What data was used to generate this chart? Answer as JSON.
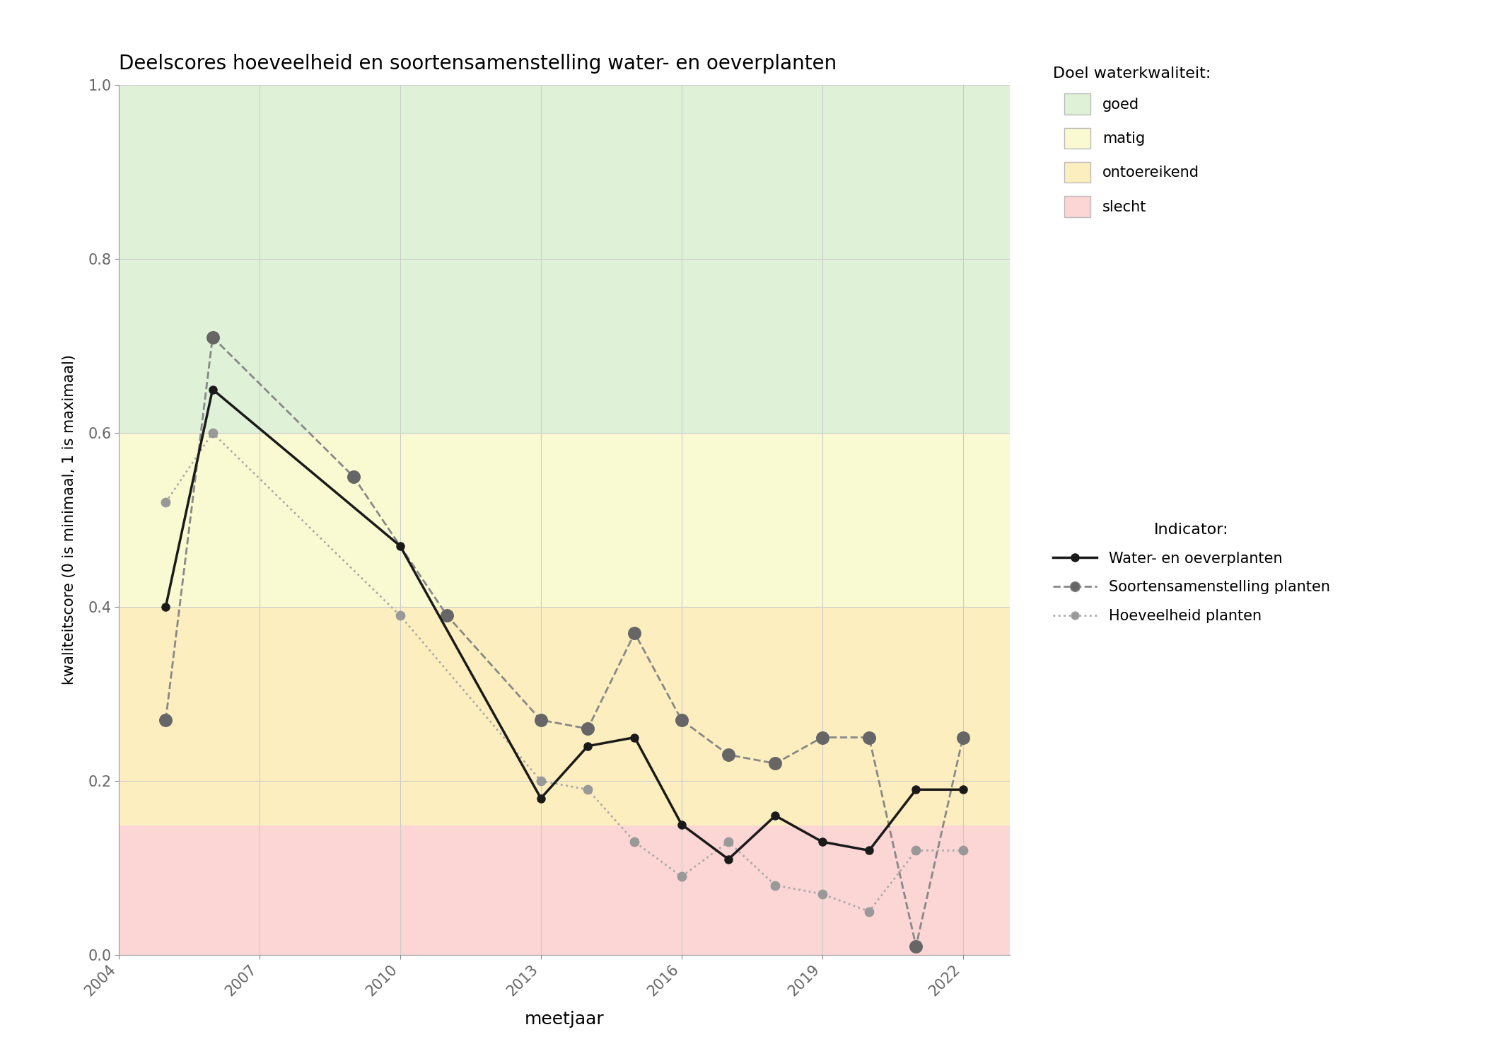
{
  "title": "Deelscores hoeveelheid en soortensamenstelling water- en oeverplanten",
  "xlabel": "meetjaar",
  "ylabel": "kwaliteitscore (0 is minimaal, 1 is maximaal)",
  "xlim": [
    2004,
    2023
  ],
  "ylim": [
    0.0,
    1.0
  ],
  "xticks": [
    2004,
    2007,
    2010,
    2013,
    2016,
    2019,
    2022
  ],
  "yticks": [
    0.0,
    0.2,
    0.4,
    0.6,
    0.8,
    1.0
  ],
  "bg_colors": {
    "goed": "#dff2d8",
    "matig": "#fafad2",
    "ontoereikend": "#fdeebf",
    "slecht": "#fcd5d5"
  },
  "bg_thresholds": {
    "goed_min": 0.6,
    "matig_min": 0.4,
    "ontoereikend_min": 0.15,
    "slecht_min": 0.0
  },
  "water_oever_years": [
    2005,
    2006,
    2010,
    2013,
    2014,
    2015,
    2016,
    2017,
    2018,
    2019,
    2020,
    2021,
    2022
  ],
  "water_oever_values": [
    0.4,
    0.65,
    0.47,
    0.18,
    0.24,
    0.25,
    0.15,
    0.11,
    0.16,
    0.13,
    0.12,
    0.19,
    0.19
  ],
  "soorten_years": [
    2005,
    2006,
    2009,
    2011,
    2013,
    2014,
    2015,
    2016,
    2017,
    2018,
    2019,
    2020,
    2021,
    2022
  ],
  "soorten_values": [
    0.27,
    0.71,
    0.55,
    0.39,
    0.27,
    0.26,
    0.37,
    0.27,
    0.23,
    0.22,
    0.25,
    0.25,
    0.01,
    0.25
  ],
  "hoeveelheid_years": [
    2005,
    2006,
    2010,
    2013,
    2014,
    2015,
    2016,
    2017,
    2018,
    2019,
    2020,
    2021,
    2022
  ],
  "hoeveelheid_values": [
    0.52,
    0.6,
    0.39,
    0.2,
    0.19,
    0.13,
    0.09,
    0.13,
    0.08,
    0.07,
    0.05,
    0.12,
    0.12
  ],
  "legend_quality_title": "Doel waterkwaliteit:",
  "legend_indicator_title": "Indicator:",
  "legend_quality_items": [
    {
      "label": "goed",
      "color": "#dff2d8"
    },
    {
      "label": "matig",
      "color": "#fafad2"
    },
    {
      "label": "ontoereikend",
      "color": "#fdeebf"
    },
    {
      "label": "slecht",
      "color": "#fcd5d5"
    }
  ],
  "line_water_color": "#1a1a1a",
  "line_soorten_color": "#888888",
  "line_hoeveelheid_color": "#aaaaaa",
  "dot_soorten_color": "#666666",
  "dot_hoeveelheid_color": "#999999",
  "background_color": "#ffffff",
  "grid_color": "#cccccc"
}
